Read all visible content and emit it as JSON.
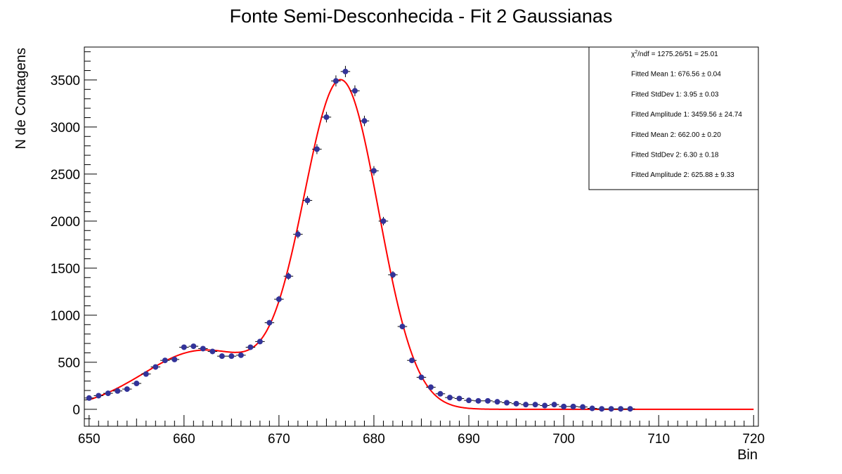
{
  "chart_data": {
    "type": "scatter",
    "title": "Fonte Semi-Desconhecida - Fit 2 Gaussianas",
    "xlabel": "Bin",
    "ylabel": "N de Contagens",
    "xlim": [
      649.5,
      720.5
    ],
    "ylim": [
      -180,
      3850
    ],
    "x_ticks": [
      650,
      660,
      670,
      680,
      690,
      700,
      710,
      720
    ],
    "y_ticks": [
      0,
      500,
      1000,
      1500,
      2000,
      2500,
      3000,
      3500
    ],
    "series": [
      {
        "type": "scatter-errorbars",
        "color": "#333399",
        "x": [
          650,
          651,
          652,
          653,
          654,
          655,
          656,
          657,
          658,
          659,
          660,
          661,
          662,
          663,
          664,
          665,
          666,
          667,
          668,
          669,
          670,
          671,
          672,
          673,
          674,
          675,
          676,
          677,
          678,
          679,
          680,
          681,
          682,
          683,
          684,
          685,
          686,
          687,
          688,
          689,
          690,
          691,
          692,
          693,
          694,
          695,
          696,
          697,
          698,
          699,
          700,
          701,
          702,
          703,
          704,
          705,
          706,
          707
        ],
        "y": [
          120,
          145,
          170,
          195,
          215,
          275,
          375,
          450,
          520,
          530,
          660,
          670,
          645,
          615,
          565,
          565,
          575,
          660,
          720,
          920,
          1170,
          1415,
          1860,
          2220,
          2765,
          3105,
          3490,
          3590,
          3385,
          3065,
          2535,
          2000,
          1430,
          880,
          520,
          340,
          235,
          165,
          125,
          115,
          95,
          90,
          90,
          80,
          70,
          60,
          50,
          50,
          40,
          50,
          30,
          30,
          25,
          10,
          5,
          5,
          5,
          5
        ],
        "yerr": [
          11,
          12,
          13,
          14,
          15,
          17,
          19,
          21,
          23,
          23,
          26,
          26,
          25,
          25,
          24,
          24,
          24,
          26,
          27,
          30,
          34,
          38,
          43,
          47,
          53,
          56,
          59,
          60,
          58,
          55,
          50,
          45,
          38,
          30,
          23,
          18,
          15,
          13,
          11,
          11,
          10,
          9,
          9,
          9,
          8,
          8,
          7,
          7,
          6,
          7,
          5,
          5,
          5,
          3,
          2,
          2,
          2,
          2
        ]
      },
      {
        "type": "line",
        "color": "#ff0000",
        "model": "double-gaussian"
      }
    ],
    "fit": {
      "mean1": 676.56,
      "sigma1": 3.95,
      "amp1": 3459.56,
      "mean2": 662.0,
      "sigma2": 6.3,
      "amp2": 625.88,
      "x_range": [
        650,
        720
      ]
    },
    "stats_box": [
      {
        "sup_prefix": "χ",
        "sup": "2",
        "rest": "/ndf = 1275.26/51 = 25.01"
      },
      {
        "text": "Fitted Mean 1: 676.56 ± 0.04"
      },
      {
        "text": "Fitted StdDev 1: 3.95 ± 0.03"
      },
      {
        "text": "Fitted Amplitude 1: 3459.56 ± 24.74"
      },
      {
        "text": "Fitted Mean 2: 662.00 ± 0.20"
      },
      {
        "text": "Fitted StdDev 2: 6.30 ± 0.18"
      },
      {
        "text": "Fitted Amplitude 2: 625.88 ± 9.33"
      }
    ],
    "grid": false,
    "legend": "top-right"
  }
}
